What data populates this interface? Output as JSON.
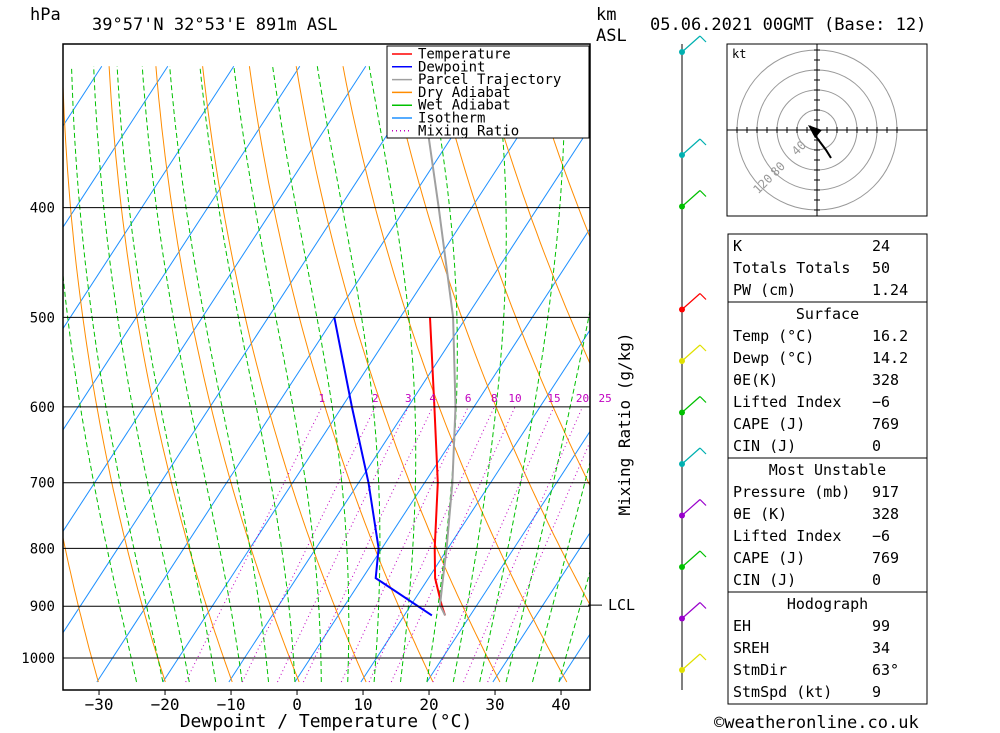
{
  "header": {
    "pressure_unit": "hPa",
    "location": "39°57'N  32°53'E  891m  ASL",
    "km_label": "km",
    "asl_label": "ASL",
    "date": "05.06.2021  00GMT  (Base: 12)"
  },
  "legend": [
    {
      "label": "Temperature",
      "color": "#ff0000",
      "style": "solid"
    },
    {
      "label": "Dewpoint",
      "color": "#0000ff",
      "style": "solid"
    },
    {
      "label": "Parcel Trajectory",
      "color": "#a0a0a0",
      "style": "solid"
    },
    {
      "label": "Dry Adiabat",
      "color": "#ff8c00",
      "style": "solid"
    },
    {
      "label": "Wet Adiabat",
      "color": "#00c000",
      "style": "solid"
    },
    {
      "label": "Isotherm",
      "color": "#1e90ff",
      "style": "solid"
    },
    {
      "label": "Mixing Ratio",
      "color": "#c000c0",
      "style": "dotted"
    }
  ],
  "chart_data": {
    "type": "line",
    "x_axis": {
      "label": "Dewpoint / Temperature (°C)",
      "ticks": [
        -30,
        -20,
        -10,
        0,
        10,
        20,
        30,
        40
      ],
      "tick_labels": [
        "−30",
        "−20",
        "−10",
        "0",
        "10",
        "20",
        "30",
        "40"
      ]
    },
    "y_axis": {
      "unit": "hPa",
      "ticks": [
        400,
        500,
        600,
        700,
        800,
        900,
        1000
      ],
      "tick_labels": [
        "400",
        "500",
        "600",
        "700",
        "800",
        "900",
        "1000"
      ],
      "scale": "log",
      "range": [
        300,
        1050
      ]
    },
    "lcl": {
      "pressure": 898,
      "label": "LCL"
    },
    "mixing_ratio_label": "Mixing Ratio (g/kg)",
    "mixing_ratio_values": [
      1,
      2,
      3,
      4,
      6,
      8,
      10,
      15,
      20,
      25
    ],
    "mixing_ratio_labels": [
      "1",
      "2",
      "3",
      "4",
      "6",
      "8",
      "10",
      "15",
      "20",
      "25"
    ],
    "series": [
      {
        "name": "Temperature",
        "color": "#ff0000",
        "points": [
          [
            917,
            16.2
          ],
          [
            900,
            14.8
          ],
          [
            850,
            11.0
          ],
          [
            800,
            8.0
          ],
          [
            700,
            2.0
          ],
          [
            600,
            -6.0
          ],
          [
            500,
            -15.5
          ]
        ]
      },
      {
        "name": "Dewpoint",
        "color": "#0000ff",
        "points": [
          [
            917,
            14.2
          ],
          [
            850,
            2.0
          ],
          [
            800,
            -0.5
          ],
          [
            700,
            -8.5
          ],
          [
            600,
            -18.5
          ],
          [
            500,
            -30.0
          ]
        ]
      },
      {
        "name": "Parcel Trajectory",
        "color": "#a0a0a0",
        "points": [
          [
            917,
            16.2
          ],
          [
            898,
            14.4
          ],
          [
            850,
            12.2
          ],
          [
            800,
            9.8
          ],
          [
            700,
            4.2
          ],
          [
            600,
            -2.8
          ],
          [
            500,
            -12.0
          ],
          [
            400,
            -25.0
          ],
          [
            300,
            -42.0
          ]
        ]
      }
    ],
    "wind_column": {
      "heights_km": [
        12,
        10,
        9,
        7,
        6,
        5,
        4,
        3,
        2,
        1,
        0
      ],
      "colors": [
        "#00b0b0",
        "#00b0b0",
        "#00c000",
        "#ff0000",
        "#e0e000",
        "#00c000",
        "#00b0b0",
        "#9900cc",
        "#00c000",
        "#9900cc",
        "#e0e000"
      ]
    }
  },
  "hodograph": {
    "unit": "kt",
    "ring_labels": [
      "40",
      "80",
      "120"
    ]
  },
  "indices": [
    {
      "label": "K",
      "value": "24"
    },
    {
      "label": "Totals Totals",
      "value": "50"
    },
    {
      "label": "PW (cm)",
      "value": "1.24"
    }
  ],
  "surface": {
    "title": "Surface",
    "rows": [
      {
        "label": "Temp (°C)",
        "value": "16.2"
      },
      {
        "label": "Dewp (°C)",
        "value": "14.2"
      },
      {
        "label": "θE(K)",
        "value": "328"
      },
      {
        "label": "Lifted Index",
        "value": "−6"
      },
      {
        "label": "CAPE (J)",
        "value": "769"
      },
      {
        "label": "CIN (J)",
        "value": "0"
      }
    ]
  },
  "most_unstable": {
    "title": "Most Unstable",
    "rows": [
      {
        "label": "Pressure (mb)",
        "value": "917"
      },
      {
        "label": "θE (K)",
        "value": "328"
      },
      {
        "label": "Lifted Index",
        "value": "−6"
      },
      {
        "label": "CAPE (J)",
        "value": "769"
      },
      {
        "label": "CIN (J)",
        "value": "0"
      }
    ]
  },
  "hodo_params": {
    "title": "Hodograph",
    "rows": [
      {
        "label": "EH",
        "value": "99"
      },
      {
        "label": "SREH",
        "value": "34"
      },
      {
        "label": "StmDir",
        "value": "63°"
      },
      {
        "label": "StmSpd (kt)",
        "value": "9"
      }
    ]
  },
  "copyright": "©weatheronline.co.uk"
}
